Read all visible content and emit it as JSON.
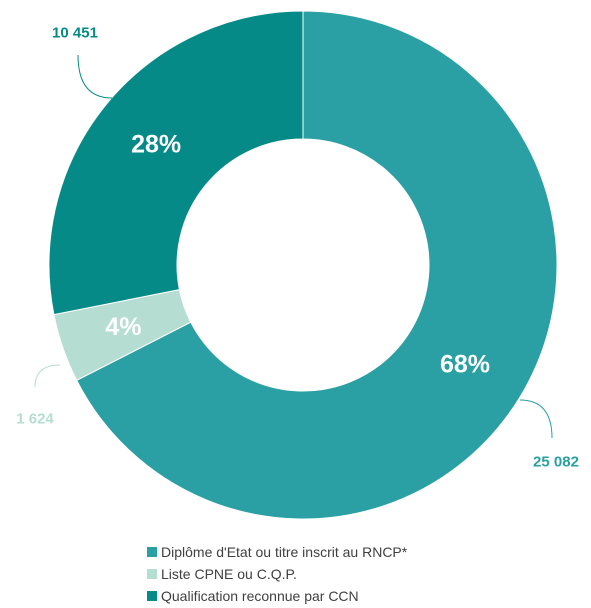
{
  "chart_data": {
    "type": "pie",
    "variant": "donut",
    "slices": [
      {
        "name": "Diplôme d'Etat ou titre inscrit au RNCP*",
        "value": 25082,
        "percent_label": "68%",
        "value_label": "25 082",
        "color": "#2aa0a4"
      },
      {
        "name": "Liste CPNE ou C.Q.P.",
        "value": 1624,
        "percent_label": "4%",
        "value_label": "1 624",
        "color": "#b5ddd1"
      },
      {
        "name": "Qualification reconnue par CCN",
        "value": 10451,
        "percent_label": "28%",
        "value_label": "10 451",
        "color": "#068a88"
      }
    ],
    "legend_position": "bottom"
  }
}
